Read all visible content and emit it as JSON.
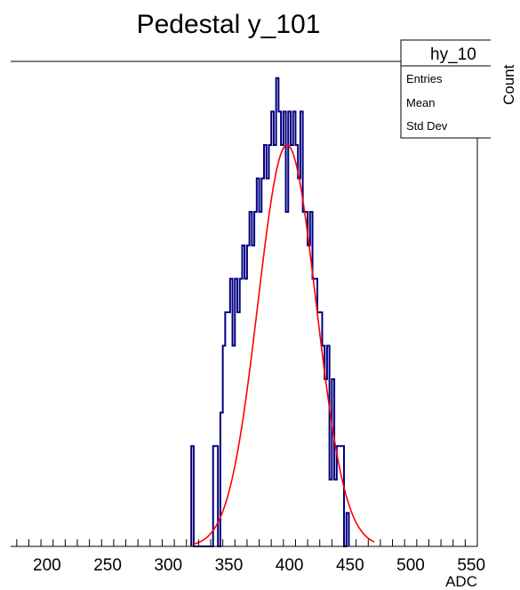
{
  "chart_data": {
    "type": "histogram",
    "title": "Pedestal y_101",
    "xlabel": "ADC",
    "ylabel": "Count",
    "xlim": [
      170,
      555
    ],
    "ylim": [
      0,
      14.5
    ],
    "x_ticks": [
      200,
      250,
      300,
      350,
      400,
      450,
      500,
      550
    ],
    "x_tick_labels": [
      "200",
      "250",
      "300",
      "350",
      "400",
      "450",
      "500",
      "550"
    ],
    "bin_width": 2,
    "bins": [
      {
        "x": 320,
        "count": 3
      },
      {
        "x": 322,
        "count": 0
      },
      {
        "x": 324,
        "count": 0
      },
      {
        "x": 326,
        "count": 0
      },
      {
        "x": 328,
        "count": 0
      },
      {
        "x": 330,
        "count": 0
      },
      {
        "x": 332,
        "count": 0
      },
      {
        "x": 334,
        "count": 0
      },
      {
        "x": 336,
        "count": 0
      },
      {
        "x": 338,
        "count": 3
      },
      {
        "x": 340,
        "count": 3
      },
      {
        "x": 342,
        "count": 0
      },
      {
        "x": 344,
        "count": 4
      },
      {
        "x": 346,
        "count": 6
      },
      {
        "x": 348,
        "count": 7
      },
      {
        "x": 350,
        "count": 7
      },
      {
        "x": 352,
        "count": 8
      },
      {
        "x": 354,
        "count": 6
      },
      {
        "x": 356,
        "count": 8
      },
      {
        "x": 358,
        "count": 7
      },
      {
        "x": 360,
        "count": 8
      },
      {
        "x": 362,
        "count": 9
      },
      {
        "x": 364,
        "count": 8
      },
      {
        "x": 366,
        "count": 9
      },
      {
        "x": 368,
        "count": 10
      },
      {
        "x": 370,
        "count": 9
      },
      {
        "x": 372,
        "count": 10
      },
      {
        "x": 374,
        "count": 11
      },
      {
        "x": 376,
        "count": 10
      },
      {
        "x": 378,
        "count": 11
      },
      {
        "x": 380,
        "count": 12
      },
      {
        "x": 382,
        "count": 11
      },
      {
        "x": 384,
        "count": 12
      },
      {
        "x": 386,
        "count": 13
      },
      {
        "x": 388,
        "count": 12
      },
      {
        "x": 390,
        "count": 14
      },
      {
        "x": 392,
        "count": 13
      },
      {
        "x": 394,
        "count": 12
      },
      {
        "x": 396,
        "count": 13
      },
      {
        "x": 398,
        "count": 10
      },
      {
        "x": 400,
        "count": 13
      },
      {
        "x": 402,
        "count": 12
      },
      {
        "x": 404,
        "count": 13
      },
      {
        "x": 406,
        "count": 12
      },
      {
        "x": 408,
        "count": 11
      },
      {
        "x": 410,
        "count": 13
      },
      {
        "x": 412,
        "count": 10
      },
      {
        "x": 414,
        "count": 10
      },
      {
        "x": 416,
        "count": 9
      },
      {
        "x": 418,
        "count": 10
      },
      {
        "x": 420,
        "count": 8
      },
      {
        "x": 422,
        "count": 8
      },
      {
        "x": 424,
        "count": 7
      },
      {
        "x": 426,
        "count": 7
      },
      {
        "x": 428,
        "count": 6
      },
      {
        "x": 430,
        "count": 5
      },
      {
        "x": 432,
        "count": 6
      },
      {
        "x": 434,
        "count": 2
      },
      {
        "x": 436,
        "count": 5
      },
      {
        "x": 438,
        "count": 2
      },
      {
        "x": 440,
        "count": 3
      },
      {
        "x": 442,
        "count": 3
      },
      {
        "x": 444,
        "count": 3
      },
      {
        "x": 446,
        "count": 0
      },
      {
        "x": 448,
        "count": 1
      }
    ],
    "fit": {
      "type": "gaussian",
      "amplitude": 12.0,
      "mean": 398,
      "sigma": 24
    },
    "fit_range": [
      320,
      470
    ],
    "stats_box": {
      "name": "hy_10",
      "rows": [
        "Entries",
        "Mean",
        "Std Dev"
      ]
    },
    "colors": {
      "histogram": "#00007f",
      "fit": "#ff0000",
      "axis": "#000000",
      "background": "#ffffff"
    }
  }
}
